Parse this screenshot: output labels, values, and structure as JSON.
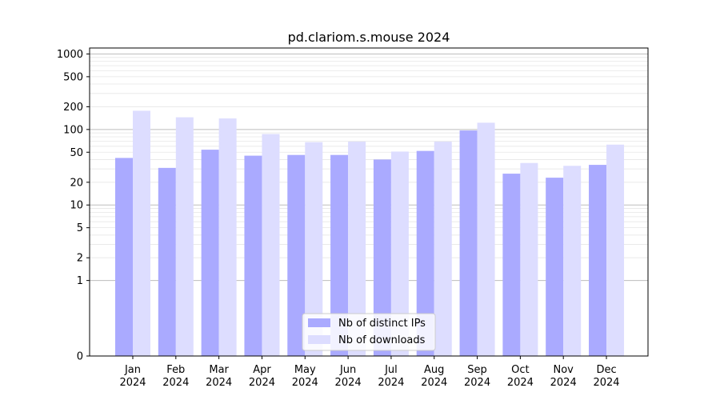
{
  "chart_data": {
    "type": "bar",
    "title": "pd.clariom.s.mouse 2024",
    "xlabel": "",
    "ylabel": "",
    "y_scale": "symlog",
    "ylim": [
      0,
      1200
    ],
    "grid": true,
    "legend_position": "bottom-center",
    "categories": [
      [
        "Jan",
        "2024"
      ],
      [
        "Feb",
        "2024"
      ],
      [
        "Mar",
        "2024"
      ],
      [
        "Apr",
        "2024"
      ],
      [
        "May",
        "2024"
      ],
      [
        "Jun",
        "2024"
      ],
      [
        "Jul",
        "2024"
      ],
      [
        "Aug",
        "2024"
      ],
      [
        "Sep",
        "2024"
      ],
      [
        "Oct",
        "2024"
      ],
      [
        "Nov",
        "2024"
      ],
      [
        "Dec",
        "2024"
      ]
    ],
    "yticks": [
      {
        "value": 0,
        "label": "0"
      },
      {
        "value": 1,
        "label": "1"
      },
      {
        "value": 2,
        "label": "2"
      },
      {
        "value": 5,
        "label": "5"
      },
      {
        "value": 10,
        "label": "10"
      },
      {
        "value": 20,
        "label": "20"
      },
      {
        "value": 50,
        "label": "50"
      },
      {
        "value": 100,
        "label": "100"
      },
      {
        "value": 200,
        "label": "200"
      },
      {
        "value": 500,
        "label": "500"
      },
      {
        "value": 1000,
        "label": "1000"
      }
    ],
    "series": [
      {
        "name": "Nb of distinct IPs",
        "color": "#aaaaff",
        "values": [
          42,
          31,
          54,
          45,
          46,
          46,
          40,
          52,
          97,
          26,
          23,
          34
        ]
      },
      {
        "name": "Nb of downloads",
        "color": "#ddddff",
        "values": [
          177,
          145,
          140,
          87,
          68,
          69,
          51,
          69,
          123,
          36,
          33,
          63
        ]
      }
    ]
  }
}
